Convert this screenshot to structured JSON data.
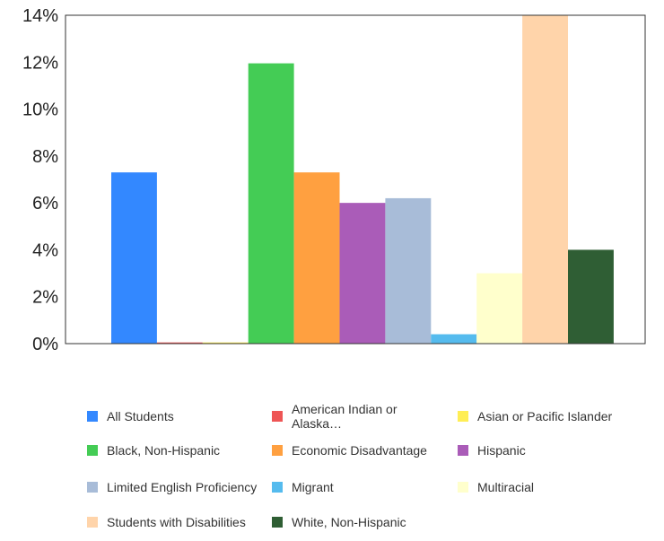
{
  "chart_data": {
    "type": "bar",
    "y_unit": "%",
    "ylim": [
      0,
      14
    ],
    "y_ticks": [
      "0%",
      "2%",
      "4%",
      "6%",
      "8%",
      "10%",
      "12%",
      "14%"
    ],
    "grid": false,
    "legend_position": "bottom",
    "series": [
      {
        "name": "All Students",
        "value": 7.3,
        "color": "#3388ff"
      },
      {
        "name": "American Indian or Alaska…",
        "value": 0.05,
        "color": "#ee5555"
      },
      {
        "name": "Asian or Pacific Islander",
        "value": 0.05,
        "color": "#ffee55"
      },
      {
        "name": "Black, Non-Hispanic",
        "value": 11.95,
        "color": "#44cc55"
      },
      {
        "name": "Economic Disadvantage",
        "value": 7.3,
        "color": "#ffa040"
      },
      {
        "name": "Hispanic",
        "value": 6.0,
        "color": "#aa5cb8"
      },
      {
        "name": "Limited English Proficiency",
        "value": 6.2,
        "color": "#a8bcd8"
      },
      {
        "name": "Migrant",
        "value": 0.4,
        "color": "#55bbee"
      },
      {
        "name": "Multiracial",
        "value": 3.0,
        "color": "#ffffcc"
      },
      {
        "name": "Students with Disabilities",
        "value": 14.0,
        "color": "#ffd4aa"
      },
      {
        "name": "White, Non-Hispanic",
        "value": 4.0,
        "color": "#2f5e34"
      }
    ]
  }
}
